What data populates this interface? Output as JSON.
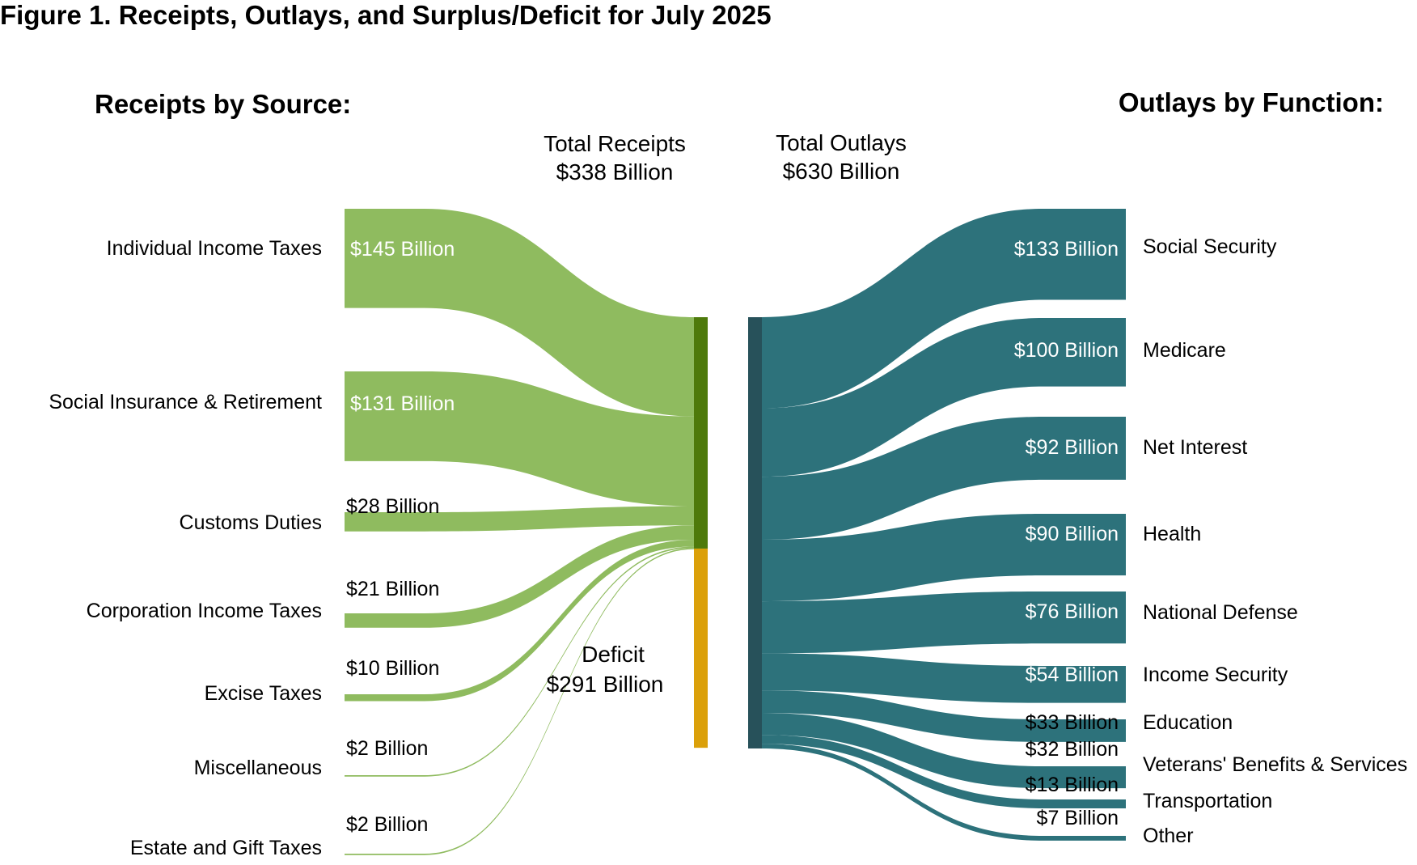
{
  "title": "Figure 1. Receipts, Outlays, and Surplus/Deficit for July 2025",
  "receipts_heading": "Receipts by Source:",
  "outlays_heading": "Outlays by Function:",
  "total_receipts": {
    "label": "Total Receipts",
    "value": "$338 Billion"
  },
  "total_outlays": {
    "label": "Total Outlays",
    "value": "$630 Billion"
  },
  "deficit": {
    "label": "Deficit",
    "value": "$291 Billion"
  },
  "colors": {
    "receipts_flow": "#8fbb5f",
    "receipts_bar": "#4e7a0b",
    "deficit_bar": "#dba00a",
    "outlays_flow": "#2d727b",
    "outlays_bar": "#27515a"
  },
  "chart_data": {
    "type": "sankey",
    "units": "Billion",
    "title": "Figure 1. Receipts, Outlays, and Surplus/Deficit for July 2025",
    "receipts": [
      {
        "name": "Individual Income Taxes",
        "value": 145,
        "value_label": "$145 Billion"
      },
      {
        "name": "Social Insurance & Retirement",
        "value": 131,
        "value_label": "$131 Billion"
      },
      {
        "name": "Customs Duties",
        "value": 28,
        "value_label": "$28 Billion"
      },
      {
        "name": "Corporation Income Taxes",
        "value": 21,
        "value_label": "$21 Billion"
      },
      {
        "name": "Excise Taxes",
        "value": 10,
        "value_label": "$10 Billion"
      },
      {
        "name": "Miscellaneous",
        "value": 2,
        "value_label": "$2 Billion"
      },
      {
        "name": "Estate and Gift Taxes",
        "value": 2,
        "value_label": "$2 Billion"
      }
    ],
    "outlays": [
      {
        "name": "Social Security",
        "value": 133,
        "value_label": "$133 Billion"
      },
      {
        "name": "Medicare",
        "value": 100,
        "value_label": "$100 Billion"
      },
      {
        "name": "Net Interest",
        "value": 92,
        "value_label": "$92 Billion"
      },
      {
        "name": "Health",
        "value": 90,
        "value_label": "$90 Billion"
      },
      {
        "name": "National Defense",
        "value": 76,
        "value_label": "$76 Billion"
      },
      {
        "name": "Income Security",
        "value": 54,
        "value_label": "$54 Billion"
      },
      {
        "name": "Education",
        "value": 33,
        "value_label": "$33 Billion"
      },
      {
        "name": "Veterans' Benefits & Services",
        "value": 32,
        "value_label": "$32 Billion"
      },
      {
        "name": "Transportation",
        "value": 13,
        "value_label": "$13 Billion"
      },
      {
        "name": "Other",
        "value": 7,
        "value_label": "$7 Billion"
      }
    ],
    "total_receipts": 338,
    "total_outlays": 630,
    "deficit": 291
  }
}
